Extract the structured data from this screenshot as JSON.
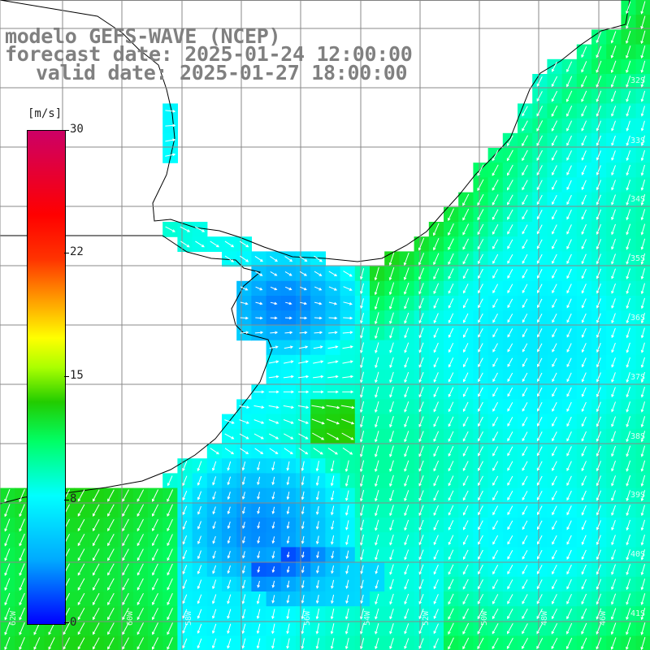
{
  "title": {
    "line1": "modelo GEFS-WAVE (NCEP)",
    "line2": "forecast date: 2025-01-24 12:00:00",
    "line3": "valid date: 2025-01-27 18:00:00"
  },
  "colorbar": {
    "unit": "[m/s]",
    "ticks": [
      "30",
      "22",
      "15",
      "8",
      "0"
    ],
    "tick_values": [
      30,
      22,
      15,
      8,
      0
    ],
    "min": 0,
    "max": 30
  },
  "lat_labels": [
    "32S",
    "33S",
    "34S",
    "35S",
    "36S",
    "37S",
    "38S",
    "39S",
    "40S",
    "41S"
  ],
  "lon_labels": [
    "62W",
    "60W",
    "58W",
    "56W",
    "54W",
    "52W",
    "50W",
    "48W",
    "46W"
  ],
  "colors": {
    "land": "#ffffff",
    "coast": "#000000",
    "grid": "#888888",
    "title": "#808080",
    "arrow": "#ffffff"
  }
}
